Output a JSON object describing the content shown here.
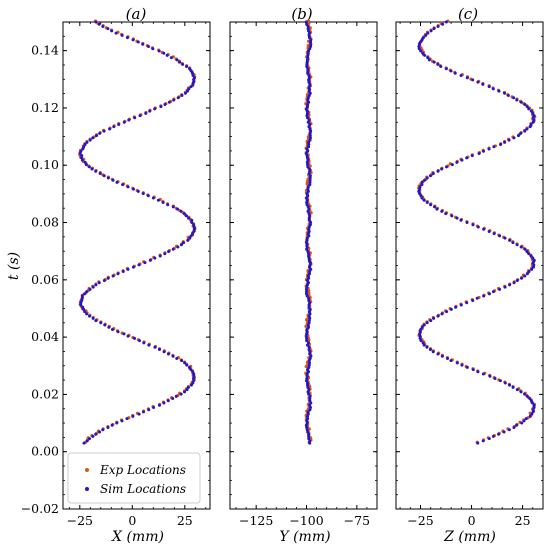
{
  "chart_data": [
    {
      "type": "scatter",
      "title": "(a)",
      "xlabel": "X (mm)",
      "ylabel": "t (s)",
      "xlim": [
        -33,
        37
      ],
      "ylim": [
        -0.02,
        0.15
      ],
      "xticks": [
        -25,
        0,
        25
      ],
      "yticks": [
        -0.02,
        0.0,
        0.02,
        0.04,
        0.06,
        0.08,
        0.1,
        0.12,
        0.14
      ],
      "legend": {
        "location": "lower-left",
        "entries": [
          "Exp Locations",
          "Sim Locations"
        ]
      },
      "series": [
        {
          "name": "Exp Locations",
          "color": "#d9531e",
          "curve": {
            "type": "sine",
            "t_start": 0.003,
            "t_end": 0.15,
            "center": 2.5,
            "amplitude": 27.0,
            "period": 0.052,
            "peak_t": 0.026
          }
        },
        {
          "name": "Sim Locations",
          "color": "#1f17c8",
          "curve": {
            "type": "sine",
            "t_start": 0.003,
            "t_end": 0.15,
            "center": 2.5,
            "amplitude": 27.0,
            "period": 0.052,
            "peak_t": 0.026
          }
        }
      ]
    },
    {
      "type": "scatter",
      "title": "(b)",
      "xlabel": "Y (mm)",
      "ylabel": "",
      "xlim": [
        -138,
        -65
      ],
      "ylim": [
        -0.02,
        0.15
      ],
      "xticks": [
        -125,
        -100,
        -75
      ],
      "yticks": [],
      "series": [
        {
          "name": "Exp Locations",
          "color": "#d9531e",
          "curve": {
            "type": "line",
            "t_start": 0.003,
            "t_end": 0.15,
            "center": -99.0,
            "jitter": 0.8
          }
        },
        {
          "name": "Sim Locations",
          "color": "#1f17c8",
          "curve": {
            "type": "line",
            "t_start": 0.003,
            "t_end": 0.15,
            "center": -99.0,
            "jitter": 0.8
          }
        }
      ]
    },
    {
      "type": "scatter",
      "title": "(c)",
      "xlabel": "Z (mm)",
      "ylabel": "",
      "xlim": [
        -37,
        35
      ],
      "ylim": [
        -0.02,
        0.15
      ],
      "xticks": [
        -25,
        0,
        25
      ],
      "yticks": [],
      "series": [
        {
          "name": "Exp Locations",
          "color": "#d9531e",
          "curve": {
            "type": "sine",
            "t_start": 0.003,
            "t_end": 0.15,
            "center": 2.5,
            "amplitude": 28.0,
            "period": 0.0505,
            "peak_t": 0.0155
          }
        },
        {
          "name": "Sim Locations",
          "color": "#1f17c8",
          "curve": {
            "type": "sine",
            "t_start": 0.003,
            "t_end": 0.15,
            "center": 2.5,
            "amplitude": 28.0,
            "period": 0.0505,
            "peak_t": 0.0155
          }
        }
      ]
    }
  ]
}
